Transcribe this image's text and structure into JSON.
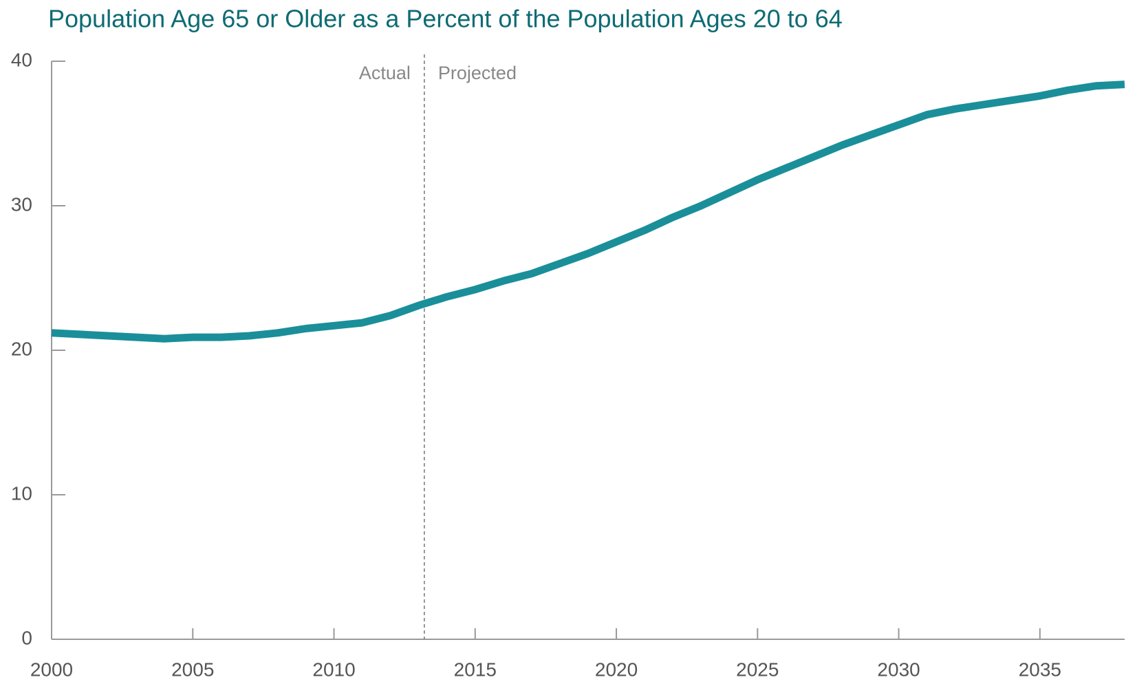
{
  "chart_data": {
    "type": "line",
    "title": "Population Age 65 or Older as a Percent of the Population Ages 20 to 64",
    "x": [
      2000,
      2001,
      2002,
      2003,
      2004,
      2005,
      2006,
      2007,
      2008,
      2009,
      2010,
      2011,
      2012,
      2013,
      2014,
      2015,
      2016,
      2017,
      2018,
      2019,
      2020,
      2021,
      2022,
      2023,
      2024,
      2025,
      2026,
      2027,
      2028,
      2029,
      2030,
      2031,
      2032,
      2033,
      2034,
      2035,
      2036,
      2037,
      2038
    ],
    "series": [
      {
        "color": "#1a8f9a",
        "values": [
          21.2,
          21.1,
          21.0,
          20.9,
          20.8,
          20.9,
          20.9,
          21.0,
          21.2,
          21.5,
          21.7,
          21.9,
          22.4,
          23.1,
          23.7,
          24.2,
          24.8,
          25.3,
          26.0,
          26.7,
          27.5,
          28.3,
          29.2,
          30.0,
          30.9,
          31.8,
          32.6,
          33.4,
          34.2,
          34.9,
          35.6,
          36.3,
          36.7,
          37.0,
          37.3,
          37.6,
          38.0,
          38.3,
          38.4
        ]
      }
    ],
    "xlim": [
      2000,
      2038
    ],
    "xticks": [
      2000,
      2005,
      2010,
      2015,
      2020,
      2025,
      2030,
      2035
    ],
    "ylim": [
      0,
      40
    ],
    "yticks": [
      0,
      10,
      20,
      30,
      40
    ],
    "annotations": {
      "divider_x": 2013.2,
      "left_label": "Actual",
      "right_label": "Projected"
    }
  }
}
